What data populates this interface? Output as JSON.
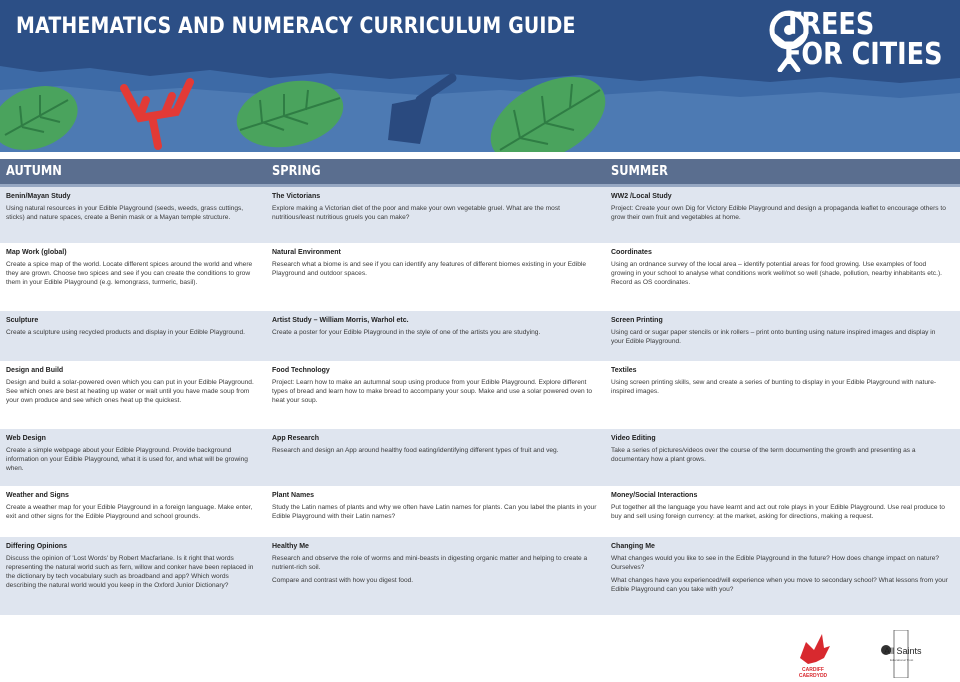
{
  "header": {
    "title": "MATHEMATICS AND NUMERACY CURRICULUM GUIDE",
    "logo_line1": "TREES",
    "logo_line2": "FOR CITIES"
  },
  "columns": [
    "AUTUMN",
    "SPRING",
    "SUMMER"
  ],
  "rows": [
    {
      "autumn": {
        "title": "Benin/Mayan Study",
        "paras": [
          "Using natural resources in your Edible Playground (seeds, weeds, grass cuttings, sticks) and nature spaces, create a Benin mask or a Mayan temple structure."
        ]
      },
      "spring": {
        "title": "The Victorians",
        "paras": [
          "Explore making a Victorian diet of the poor and make your own vegetable gruel. What are the most nutritious/least nutritious gruels you can make?"
        ]
      },
      "summer": {
        "title": "WW2 /Local Study",
        "paras": [
          "Project: Create your own Dig for Victory Edible Playground and design a propaganda leaflet to encourage others to grow their own fruit and vegetables at home."
        ]
      }
    },
    {
      "autumn": {
        "title": "Map Work (global)",
        "paras": [
          "Create a spice map of the world. Locate different spices around the world and where they are grown. Choose two spices and see if you can create the conditions to grow them in your Edible Playground (e.g. lemongrass, turmeric, basil)."
        ]
      },
      "spring": {
        "title": "Natural Environment",
        "paras": [
          "Research what a biome is and see if you can identify any features of different biomes existing in your Edible Playground and outdoor spaces."
        ]
      },
      "summer": {
        "title": "Coordinates",
        "paras": [
          "Using an ordnance survey of the local area – identify potential areas for food growing. Use examples of food growing in your school to analyse what conditions work well/not so well (shade, pollution, nearby inhabitants etc.). Record as OS coordinates."
        ]
      }
    },
    {
      "autumn": {
        "title": "Sculpture",
        "paras": [
          "Create a sculpture using recycled products and display in your Edible Playground."
        ]
      },
      "spring": {
        "title": "Artist Study – William Morris, Warhol etc.",
        "paras": [
          "Create a poster for your Edible Playground in the style of one of the artists you are studying."
        ]
      },
      "summer": {
        "title": "Screen Printing",
        "paras": [
          "Using card or sugar paper stencils or ink rollers – print onto bunting using nature inspired images and display in your Edible Playground."
        ]
      }
    },
    {
      "autumn": {
        "title": "Design and Build",
        "paras": [
          "Design and build a solar-powered oven which you can put in your Edible Playground. See which ones are best at heating up water or wait until you have made soup from your own produce and see which ones heat up the quickest."
        ]
      },
      "spring": {
        "title": "Food Technology",
        "paras": [
          "Project: Learn how to make an autumnal soup using produce from your Edible Playground. Explore different types of bread and learn how to make bread to accompany your soup. Make and use a solar powered oven to heat your soup."
        ]
      },
      "summer": {
        "title": "Textiles",
        "paras": [
          "Using screen printing skills, sew and create a series of bunting to display in your Edible Playground with nature-inspired images."
        ]
      }
    },
    {
      "autumn": {
        "title": "Web Design",
        "paras": [
          "Create a simple webpage about your Edible Playground. Provide background information on your Edible Playground, what it is used for, and what will be growing when."
        ]
      },
      "spring": {
        "title": "App Research",
        "paras": [
          "Research and design an App around healthy food eating/identifying different types of fruit and veg."
        ]
      },
      "summer": {
        "title": "Video Editing",
        "paras": [
          "Take a series of pictures/videos over the course of the term documenting the growth and presenting as a documentary how a plant grows."
        ]
      }
    },
    {
      "autumn": {
        "title": "Weather and Signs",
        "paras": [
          "Create a weather map for your Edible Playground in a foreign language. Make enter, exit and other signs for the Edible Playground and school grounds."
        ]
      },
      "spring": {
        "title": "Plant Names",
        "paras": [
          "Study the Latin names of plants and why we often have Latin names for plants. Can you label the plants in your Edible Playground with their Latin names?"
        ]
      },
      "summer": {
        "title": "Money/Social Interactions",
        "paras": [
          "Put together all the language you have learnt and act out role plays in your Edible Playground. Use real produce to buy and sell using foreign currency: at the market, asking for directions, making a request."
        ]
      }
    },
    {
      "autumn": {
        "title": "Differing Opinions",
        "paras": [
          "Discuss the opinion of 'Lost Words' by Robert Macfarlane. Is it right that words representing the natural world such as fern, willow and conker have been replaced in the dictionary by tech vocabulary such as broadband and app? Which words describing the natural world would you keep in the Oxford Junior Dictionary?"
        ]
      },
      "spring": {
        "title": "Healthy Me",
        "paras": [
          "Research and observe the role of worms and mini-beasts in digesting organic matter and helping to create a nutrient-rich soil.",
          "Compare and contrast with how you digest food."
        ]
      },
      "summer": {
        "title": "Changing Me",
        "paras": [
          "What changes would you like to see in the Edible Playground in the future?  How does change impact on nature? Ourselves?",
          "What changes have you experienced/will experience when you move to secondary school? What lessons from your Edible Playground can you take with you?"
        ]
      }
    }
  ],
  "footer": {
    "cardiff_line1": "CARDIFF",
    "cardiff_line2": "CAERDYDD",
    "allsaints_name": "All Saints",
    "allsaints_sub": "Educational Trust"
  },
  "colors": {
    "banner": "#2c4f86",
    "header_bar": "#5a6e8f",
    "row_shade": "#dfe5ef",
    "leaf": "#4aa35d",
    "fork": "#e23a36"
  }
}
